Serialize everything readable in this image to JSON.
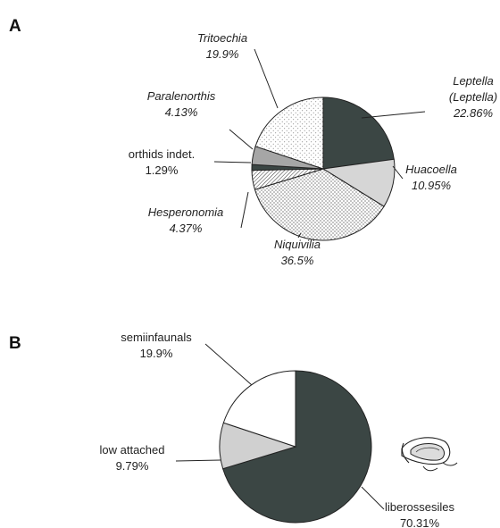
{
  "panels": {
    "a_letter": "A",
    "b_letter": "B"
  },
  "chart_data": [
    {
      "type": "pie",
      "panel": "A",
      "title": "",
      "start": "12 o'clock, clockwise",
      "slices": [
        {
          "key": "leptella",
          "label": "Leptella (Leptella)",
          "label_lines": [
            "Leptella",
            "(Leptella)"
          ],
          "value": 22.86,
          "value_label": "22.86%",
          "italic": true,
          "fill_color": "#3b4644",
          "pattern": "solid"
        },
        {
          "key": "huacoella",
          "label": "Huacoella",
          "label_lines": [
            "Huacoella"
          ],
          "value": 10.95,
          "value_label": "10.95%",
          "italic": true,
          "fill_color": "#d6d6d6",
          "pattern": "solid"
        },
        {
          "key": "niquivilia",
          "label": "Niquivilia",
          "label_lines": [
            "Niquivilia"
          ],
          "value": 36.5,
          "value_label": "36.5%",
          "italic": true,
          "fill_color": "#ffffff",
          "pattern": "fine-dots"
        },
        {
          "key": "hesperonomia",
          "label": "Hesperonomia",
          "label_lines": [
            "Hesperonomia"
          ],
          "value": 4.37,
          "value_label": "4.37%",
          "italic": true,
          "fill_color": "#ffffff",
          "pattern": "diagonal-hatch"
        },
        {
          "key": "orthids",
          "label": "orthids indet.",
          "label_lines": [
            "orthids indet."
          ],
          "value": 1.29,
          "value_label": "1.29%",
          "italic": false,
          "fill_color": "#3b4644",
          "pattern": "solid"
        },
        {
          "key": "paralenorthis",
          "label": "Paralenorthis",
          "label_lines": [
            "Paralenorthis"
          ],
          "value": 4.13,
          "value_label": "4.13%",
          "italic": true,
          "fill_color": "#a6a6a6",
          "pattern": "solid"
        },
        {
          "key": "tritoechia",
          "label": "Tritoechia",
          "label_lines": [
            "Tritoechia"
          ],
          "value": 19.9,
          "value_label": "19.9%",
          "italic": true,
          "fill_color": "#ffffff",
          "pattern": "sparse-dots"
        }
      ]
    },
    {
      "type": "pie",
      "panel": "B",
      "title": "",
      "start": "12 o'clock, clockwise",
      "slices": [
        {
          "key": "liberosesiles",
          "label": "liberossesiles",
          "label_lines": [
            "liberossesiles"
          ],
          "value": 70.31,
          "value_label": "70.31%",
          "italic": false,
          "fill_color": "#3b4644",
          "pattern": "solid"
        },
        {
          "key": "low_attached",
          "label": "low attached",
          "label_lines": [
            "low attached"
          ],
          "value": 9.79,
          "value_label": "9.79%",
          "italic": false,
          "fill_color": "#d0d0d0",
          "pattern": "solid"
        },
        {
          "key": "semiinfaunals",
          "label": "semiinfaunals",
          "label_lines": [
            "semiinfaunals"
          ],
          "value": 19.9,
          "value_label": "19.9%",
          "italic": false,
          "fill_color": "#ffffff",
          "pattern": "solid"
        }
      ]
    }
  ],
  "icons": {
    "shell": "brachiopod-shell-icon"
  }
}
